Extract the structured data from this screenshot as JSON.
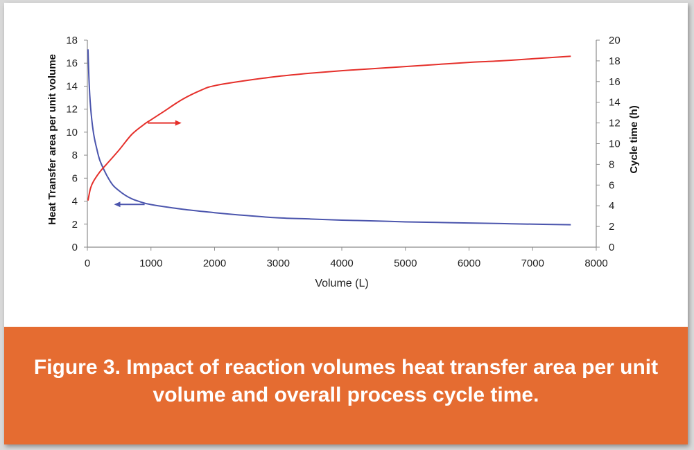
{
  "colors": {
    "band": "#E56C31",
    "left_series": "#4B55AD",
    "right_series": "#E5302B",
    "axis": "#8c8c8c"
  },
  "caption": "Figure 3. Impact of reaction volumes heat transfer area per unit volume and overall process cycle time.",
  "chart_data": {
    "type": "line",
    "title": "",
    "xlabel": "Volume (L)",
    "ylabel": "Heat Transfer area per unit volume",
    "ylabel_right": "Cycle time (h)",
    "xlim": [
      0,
      8000
    ],
    "ylim": [
      0,
      18
    ],
    "ylim_right": [
      0,
      20
    ],
    "x_ticks": [
      0,
      1000,
      2000,
      3000,
      4000,
      5000,
      6000,
      7000,
      8000
    ],
    "y_ticks": [
      0,
      2,
      4,
      6,
      8,
      10,
      12,
      14,
      16,
      18
    ],
    "y_ticks_right": [
      0,
      2,
      4,
      6,
      8,
      10,
      12,
      14,
      16,
      18,
      20
    ],
    "grid": false,
    "legend": "none",
    "series": [
      {
        "axis": "left",
        "points": [
          [
            10,
            17.2
          ],
          [
            30,
            14.0
          ],
          [
            60,
            11.6
          ],
          [
            100,
            9.8
          ],
          [
            150,
            8.5
          ],
          [
            200,
            7.5
          ],
          [
            300,
            6.3
          ],
          [
            400,
            5.4
          ],
          [
            500,
            4.9
          ],
          [
            600,
            4.5
          ],
          [
            700,
            4.2
          ],
          [
            800,
            4.0
          ],
          [
            1000,
            3.7
          ],
          [
            1500,
            3.3
          ],
          [
            2000,
            3.0
          ],
          [
            2500,
            2.75
          ],
          [
            3000,
            2.55
          ],
          [
            3500,
            2.45
          ],
          [
            4000,
            2.35
          ],
          [
            4500,
            2.28
          ],
          [
            5000,
            2.2
          ],
          [
            5500,
            2.15
          ],
          [
            6000,
            2.1
          ],
          [
            6500,
            2.05
          ],
          [
            7000,
            2.0
          ],
          [
            7600,
            1.95
          ]
        ]
      },
      {
        "axis": "right",
        "points": [
          [
            10,
            4.5
          ],
          [
            50,
            5.7
          ],
          [
            100,
            6.4
          ],
          [
            200,
            7.3
          ],
          [
            300,
            8.0
          ],
          [
            500,
            9.4
          ],
          [
            700,
            10.9
          ],
          [
            900,
            11.9
          ],
          [
            1000,
            12.3
          ],
          [
            1200,
            13.1
          ],
          [
            1500,
            14.3
          ],
          [
            1800,
            15.2
          ],
          [
            2000,
            15.6
          ],
          [
            2500,
            16.1
          ],
          [
            3000,
            16.5
          ],
          [
            3500,
            16.8
          ],
          [
            4000,
            17.05
          ],
          [
            4500,
            17.25
          ],
          [
            5000,
            17.45
          ],
          [
            5500,
            17.65
          ],
          [
            6000,
            17.85
          ],
          [
            6500,
            18.0
          ],
          [
            7000,
            18.2
          ],
          [
            7600,
            18.45
          ]
        ]
      }
    ],
    "annotations": [
      {
        "type": "arrow",
        "axis": "left",
        "points": [
          [
            900,
            3.72
          ],
          [
            420,
            3.72
          ]
        ],
        "color": "left_series"
      },
      {
        "type": "arrow",
        "axis": "right",
        "points": [
          [
            950,
            12.0
          ],
          [
            1480,
            12.0
          ]
        ],
        "color": "right_series"
      }
    ]
  }
}
